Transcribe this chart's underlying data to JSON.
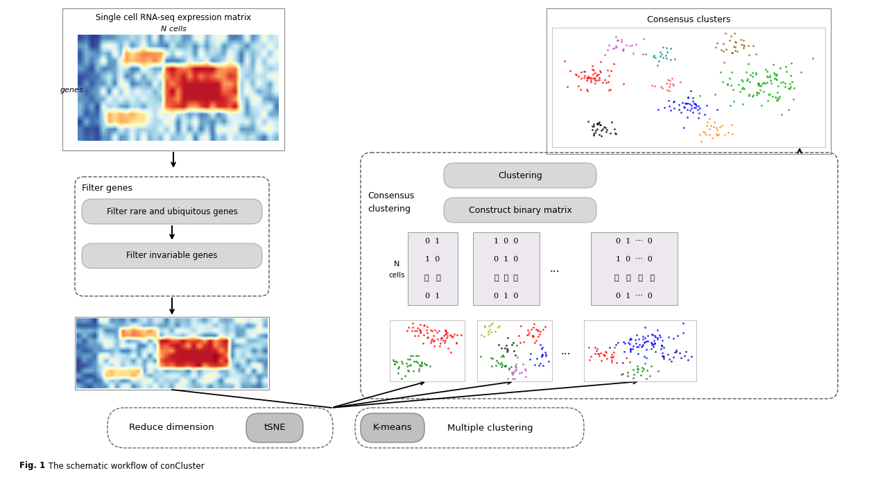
{
  "bg_color": "#ffffff",
  "box1_title": "Single cell RNA-seq expression matrix",
  "box1_subtitle": "N cells",
  "box1_ylabel": "genes",
  "filter_title": "Filter genes",
  "filter1_text": "Filter rare and ubiquitous genes",
  "filter2_text": "Filter invariable genes",
  "consensus_box_label": "Consensus\nclustering",
  "clustering_btn": "Clustering",
  "binary_btn": "Construct binary matrix",
  "consensus_clusters_title": "Consensus clusters",
  "reduce_dim_text": "Reduce dimension",
  "tsne_btn": "tSNE",
  "kmeans_btn": "K-means",
  "multi_cluster_text": "Multiple clustering",
  "caption_bold": "Fig. 1",
  "caption_rest": " The schematic workflow of conCluster"
}
